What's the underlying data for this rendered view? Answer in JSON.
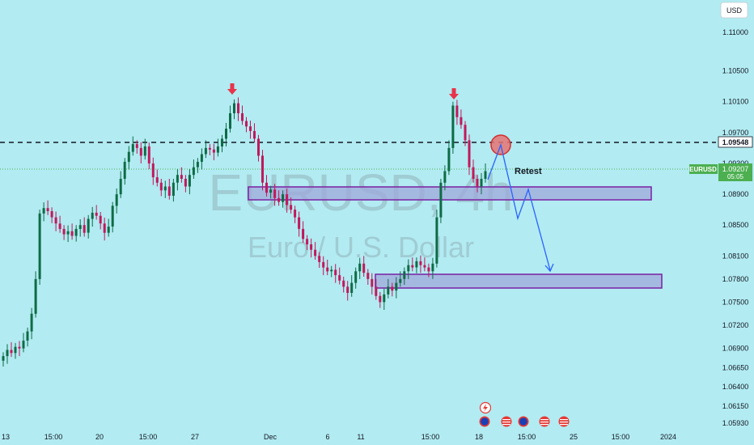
{
  "currency_button": "USD",
  "watermark": {
    "symbol_line": "EURUSD, 4h",
    "desc_line": "Euro / U.S. Dollar"
  },
  "annotation": {
    "retest_text": "Retest"
  },
  "badges": {
    "level_price": "1.09548",
    "symbol": "EURUSD",
    "last_price": "1.09207",
    "countdown": "05:05"
  },
  "colors": {
    "background": "#b2ebf2",
    "up_candle": "#0e6b45",
    "down_candle": "#c2185b",
    "zone_fill": "#9fa8da",
    "zone_border": "#7b1fa2",
    "arrow": "#2962ff",
    "signal_arrow": "#e8334a",
    "price_badge": "#4caf50"
  },
  "chart_data": {
    "type": "candlestick",
    "symbol": "EURUSD",
    "timeframe": "4h",
    "ylim": [
      1.0585,
      1.1145
    ],
    "y_ticks": [
      "1.11000",
      "1.10500",
      "1.10100",
      "1.09700",
      "1.09300",
      "1.08900",
      "1.08500",
      "1.08100",
      "1.07800",
      "1.07500",
      "1.07200",
      "1.06900",
      "1.06650",
      "1.06400",
      "1.06150",
      "1.05930"
    ],
    "x_ticks": [
      "13",
      "15:00",
      "20",
      "15:00",
      "27",
      "Dec",
      "6",
      "11",
      "15:00",
      "18",
      "15:00",
      "25",
      "15:00",
      "2024"
    ],
    "resistance_level": 1.09548,
    "last_price": 1.09207,
    "zones": [
      {
        "name": "upper-zone",
        "low": 1.0877,
        "high": 1.0898
      },
      {
        "name": "lower-zone",
        "low": 1.0765,
        "high": 1.0786
      }
    ],
    "peaks": [
      1.1008,
      1.1005
    ],
    "closes": [
      1.068,
      1.0688,
      1.0684,
      1.0692,
      1.069,
      1.07,
      1.0712,
      1.0735,
      1.078,
      1.0865,
      1.0872,
      1.0868,
      1.086,
      1.0852,
      1.0845,
      1.0838,
      1.0842,
      1.0836,
      1.0845,
      1.085,
      1.084,
      1.0858,
      1.0866,
      1.0862,
      1.0852,
      1.084,
      1.0848,
      1.0875,
      1.089,
      1.091,
      1.0932,
      1.0945,
      1.0955,
      1.095,
      1.094,
      1.0952,
      1.093,
      1.0912,
      1.0905,
      1.0895,
      1.09,
      1.0888,
      1.0905,
      1.0915,
      1.091,
      1.09,
      1.0915,
      1.0925,
      1.0932,
      1.0942,
      1.095,
      1.0948,
      1.0944,
      1.0952,
      1.0962,
      1.0975,
      1.0995,
      1.1008,
      1.0995,
      1.0985,
      1.0978,
      1.0972,
      1.0962,
      1.094,
      1.0905,
      1.0892,
      1.0896,
      1.0885,
      1.088,
      1.089,
      1.0876,
      1.087,
      1.086,
      1.0845,
      1.0832,
      1.0825,
      1.0818,
      1.081,
      1.0802,
      1.0795,
      1.079,
      1.0792,
      1.0785,
      1.0778,
      1.077,
      1.0762,
      1.0775,
      1.079,
      1.08,
      1.0788,
      1.078,
      1.077,
      1.0758,
      1.075,
      1.076,
      1.077,
      1.0765,
      1.0775,
      1.078,
      1.079,
      1.0798,
      1.0795,
      1.0803,
      1.0798,
      1.0795,
      1.079,
      1.08,
      1.086,
      1.0905,
      1.092,
      1.095,
      1.1005,
      1.099,
      1.098,
      1.096,
      1.0925,
      1.091,
      1.09,
      1.091,
      1.092
    ]
  }
}
